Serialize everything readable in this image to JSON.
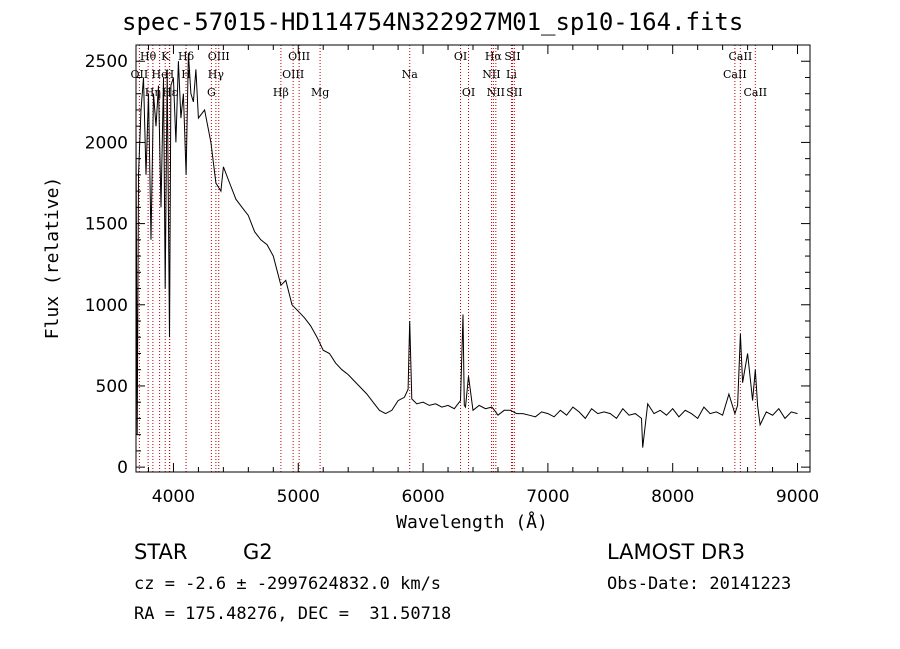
{
  "header": {
    "title": "spec-57015-HD114754N322927M01_sp10-164.fits"
  },
  "info": {
    "object_class": "STAR",
    "subclass": "G2",
    "survey": "LAMOST DR3",
    "redshift": "cz = -2.6 ± -2997624832.0 km/s",
    "obs_date": "Obs-Date: 20141223",
    "coords": "RA = 175.48276, DEC =  31.50718"
  },
  "chart_data": {
    "type": "line",
    "title": "spec-57015-HD114754N322927M01_sp10-164.fits",
    "xlabel": "Wavelength (Å)",
    "ylabel": "Flux (relative)",
    "xlim": [
      3700,
      9100
    ],
    "ylim": [
      -30,
      2600
    ],
    "xticks": [
      4000,
      5000,
      6000,
      7000,
      8000,
      9000
    ],
    "yticks": [
      0,
      500,
      1000,
      1500,
      2000,
      2500
    ],
    "series": [
      {
        "name": "spectrum",
        "x": [
          3700,
          3710,
          3720,
          3740,
          3760,
          3780,
          3800,
          3820,
          3840,
          3860,
          3880,
          3900,
          3920,
          3934,
          3950,
          3968,
          3980,
          4000,
          4020,
          4040,
          4060,
          4080,
          4101,
          4120,
          4140,
          4160,
          4180,
          4200,
          4250,
          4300,
          4340,
          4380,
          4400,
          4450,
          4500,
          4550,
          4600,
          4650,
          4700,
          4750,
          4800,
          4861,
          4900,
          4950,
          5000,
          5050,
          5100,
          5150,
          5200,
          5250,
          5300,
          5350,
          5400,
          5450,
          5500,
          5550,
          5600,
          5650,
          5700,
          5750,
          5800,
          5850,
          5880,
          5893,
          5910,
          5950,
          6000,
          6050,
          6100,
          6150,
          6200,
          6250,
          6300,
          6320,
          6330,
          6340,
          6364,
          6400,
          6450,
          6500,
          6550,
          6563,
          6600,
          6650,
          6700,
          6750,
          6800,
          6850,
          6900,
          6950,
          7000,
          7050,
          7100,
          7150,
          7200,
          7250,
          7300,
          7350,
          7400,
          7450,
          7500,
          7550,
          7600,
          7650,
          7700,
          7750,
          7760,
          7800,
          7850,
          7900,
          7950,
          8000,
          8050,
          8100,
          8150,
          8200,
          8250,
          8300,
          8350,
          8400,
          8450,
          8498,
          8520,
          8542,
          8560,
          8600,
          8640,
          8662,
          8680,
          8700,
          8750,
          8800,
          8850,
          8900,
          8950,
          9000
        ],
        "y": [
          2100,
          200,
          1800,
          2200,
          2400,
          1800,
          2300,
          1400,
          2300,
          2100,
          2350,
          1600,
          2400,
          1100,
          2450,
          800,
          2350,
          2400,
          2000,
          2500,
          2150,
          2300,
          1800,
          2550,
          2300,
          2250,
          2450,
          2150,
          2200,
          2000,
          1750,
          1700,
          1850,
          1750,
          1650,
          1600,
          1550,
          1450,
          1400,
          1370,
          1300,
          1120,
          1150,
          1000,
          960,
          920,
          870,
          800,
          720,
          700,
          640,
          600,
          570,
          530,
          490,
          450,
          400,
          350,
          330,
          350,
          410,
          430,
          480,
          900,
          420,
          390,
          400,
          380,
          390,
          370,
          380,
          360,
          410,
          940,
          380,
          370,
          560,
          350,
          380,
          360,
          370,
          360,
          320,
          350,
          350,
          330,
          330,
          320,
          310,
          340,
          330,
          310,
          350,
          320,
          370,
          340,
          300,
          360,
          330,
          340,
          330,
          300,
          360,
          320,
          330,
          300,
          120,
          390,
          330,
          350,
          320,
          360,
          310,
          350,
          330,
          300,
          370,
          330,
          340,
          320,
          450,
          330,
          380,
          820,
          520,
          700,
          410,
          600,
          380,
          260,
          340,
          320,
          360,
          300,
          340,
          330
        ]
      }
    ],
    "line_markers": [
      {
        "label": "Hθ",
        "x": 3797,
        "row": 1
      },
      {
        "label": "OII",
        "x": 3727,
        "row": 2
      },
      {
        "label": "Hη",
        "x": 3835,
        "row": 3
      },
      {
        "label": "He",
        "x": 3889,
        "row": 2
      },
      {
        "label": "K",
        "x": 3934,
        "row": 1
      },
      {
        "label": "H",
        "x": 3968,
        "row": 2
      },
      {
        "label": "Hε",
        "x": 3970,
        "row": 3
      },
      {
        "label": "Hδ",
        "x": 4101,
        "row": 1
      },
      {
        "label": "H",
        "x": 4101,
        "row": 2
      },
      {
        "label": "OIII",
        "x": 4363,
        "row": 1
      },
      {
        "label": "Hγ",
        "x": 4340,
        "row": 2
      },
      {
        "label": "G",
        "x": 4304,
        "row": 3
      },
      {
        "label": "Hβ",
        "x": 4861,
        "row": 3
      },
      {
        "label": "OIII",
        "x": 5007,
        "row": 1
      },
      {
        "label": "OIII",
        "x": 4959,
        "row": 2
      },
      {
        "label": "Mg",
        "x": 5175,
        "row": 3
      },
      {
        "label": "Na",
        "x": 5893,
        "row": 2
      },
      {
        "label": "OI",
        "x": 6300,
        "row": 1
      },
      {
        "label": "OI",
        "x": 6364,
        "row": 3
      },
      {
        "label": "Hα",
        "x": 6563,
        "row": 1
      },
      {
        "label": "NII",
        "x": 6548,
        "row": 2
      },
      {
        "label": "NII",
        "x": 6583,
        "row": 3
      },
      {
        "label": "SII",
        "x": 6716,
        "row": 1
      },
      {
        "label": "Li",
        "x": 6708,
        "row": 2
      },
      {
        "label": "SII",
        "x": 6731,
        "row": 3
      },
      {
        "label": "CaII",
        "x": 8542,
        "row": 1
      },
      {
        "label": "CaII",
        "x": 8498,
        "row": 2
      },
      {
        "label": "CaII",
        "x": 8662,
        "row": 3
      }
    ]
  }
}
